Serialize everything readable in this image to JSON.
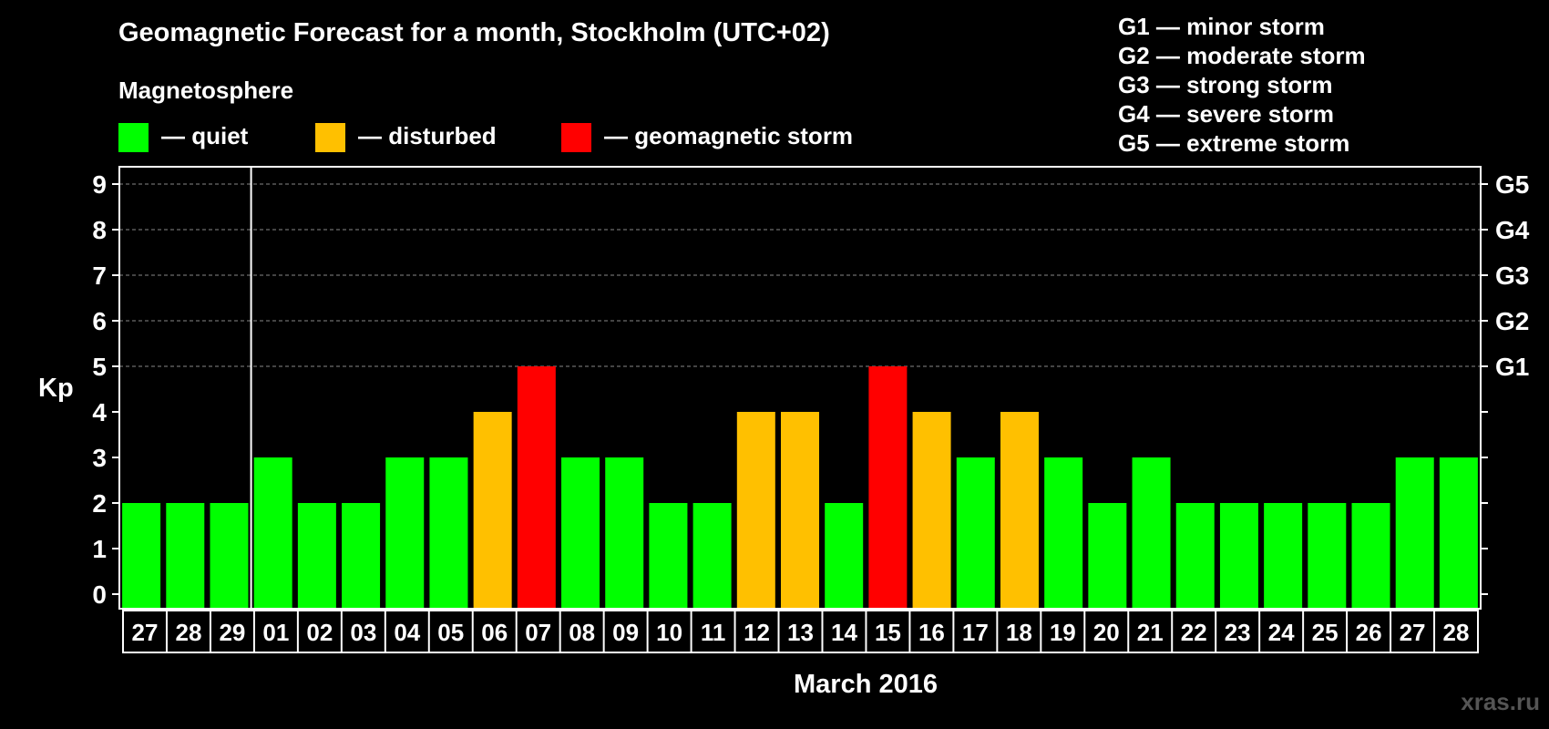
{
  "title": "Geomagnetic Forecast for a month, Stockholm (UTC+02)",
  "magnetosphere_label": "Magnetosphere",
  "legend": [
    {
      "label": "— quiet",
      "color": "#00ff00"
    },
    {
      "label": "— disturbed",
      "color": "#ffc000"
    },
    {
      "label": "— geomagnetic storm",
      "color": "#ff0000"
    }
  ],
  "storm_scale": [
    "G1 — minor storm",
    "G2 — moderate storm",
    "G3 — strong storm",
    "G4 — severe storm",
    "G5 — extreme storm"
  ],
  "watermark": "xras.ru",
  "chart_data": {
    "type": "bar",
    "ylabel": "Kp",
    "xlabel": "March 2016",
    "ylim": [
      0,
      9
    ],
    "yticks": [
      "0",
      "1",
      "2",
      "3",
      "4",
      "5",
      "6",
      "7",
      "8",
      "9"
    ],
    "right_axis": [
      {
        "kp": 5,
        "label": "G1"
      },
      {
        "kp": 6,
        "label": "G2"
      },
      {
        "kp": 7,
        "label": "G3"
      },
      {
        "kp": 8,
        "label": "G4"
      },
      {
        "kp": 9,
        "label": "G5"
      }
    ],
    "categories": [
      "27",
      "28",
      "29",
      "01",
      "02",
      "03",
      "04",
      "05",
      "06",
      "07",
      "08",
      "09",
      "10",
      "11",
      "12",
      "13",
      "14",
      "15",
      "16",
      "17",
      "18",
      "19",
      "20",
      "21",
      "22",
      "23",
      "24",
      "25",
      "26",
      "27",
      "28"
    ],
    "values": [
      2,
      2,
      2,
      3,
      2,
      2,
      3,
      3,
      4,
      5,
      3,
      3,
      2,
      2,
      4,
      4,
      2,
      5,
      4,
      3,
      4,
      3,
      2,
      3,
      2,
      2,
      2,
      2,
      2,
      3,
      3
    ],
    "month_start_index": 3,
    "colors": {
      "quiet": "#00ff00",
      "disturbed": "#ffc000",
      "storm": "#ff0000"
    },
    "grid": "dashed horizontal lines at 5-9"
  }
}
